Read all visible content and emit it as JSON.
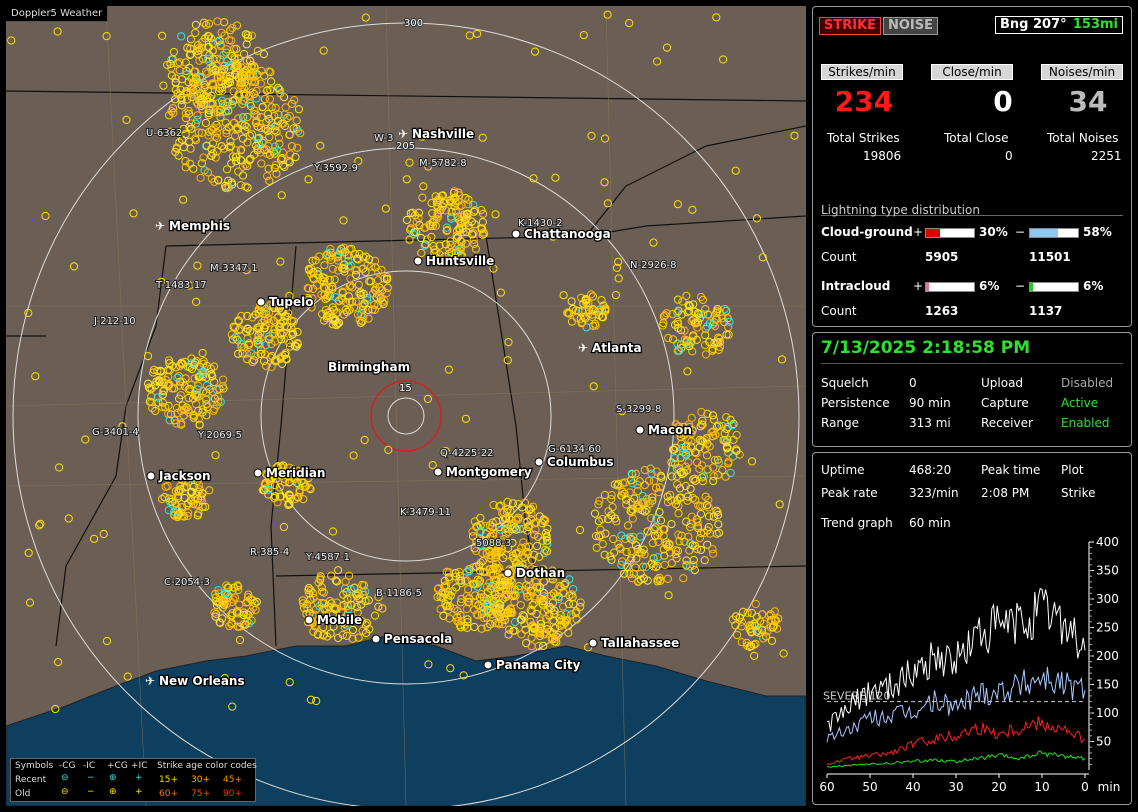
{
  "map": {
    "title": "Doppler5 Weather",
    "rings": [
      "300",
      "205",
      "15"
    ],
    "cities": [
      {
        "name": "Nashville"
      },
      {
        "name": "Memphis"
      },
      {
        "name": "Chattanooga"
      },
      {
        "name": "Huntsville"
      },
      {
        "name": "Tupelo"
      },
      {
        "name": "Atlanta"
      },
      {
        "name": "Birmingham"
      },
      {
        "name": "Macon"
      },
      {
        "name": "Jackson"
      },
      {
        "name": "Meridian"
      },
      {
        "name": "Montgomery"
      },
      {
        "name": "Columbus"
      },
      {
        "name": "Dothan"
      },
      {
        "name": "Mobile"
      },
      {
        "name": "Pensacola"
      },
      {
        "name": "Tallahassee"
      },
      {
        "name": "Panama City"
      },
      {
        "name": "New Orleans"
      }
    ],
    "storms": [
      "U-6362",
      "W-3",
      "Y-3592-9",
      "M-5782-8",
      "K-1430-2",
      "M-3347-1",
      "T-1483-17",
      "N-2926-8",
      "J-212-10",
      "S-3299-8",
      "G-3401-4",
      "Y-2069-5",
      "Q-4225-22",
      "G-6134-60",
      "K-3479-11",
      "5088-3",
      "R-385-4",
      "Y-4587-1",
      "C-2054-3",
      "B-1186-5"
    ],
    "legend": {
      "symbols": "Symbols",
      "recent": "Recent",
      "old": "Old",
      "cg_neg": "-CG",
      "ic_neg": "-IC",
      "cg_pos": "+CG",
      "ic_pos": "+IC",
      "age_title": "Strike age color codes",
      "recent_ages": [
        "15+",
        "30+",
        "45+"
      ],
      "old_ages": [
        "60+",
        "75+",
        "90+"
      ]
    }
  },
  "header": {
    "strike": "STRIKE",
    "noise": "NOISE",
    "bearing": "Bng 207°",
    "range": "153mi"
  },
  "rates": {
    "strikes_label": "Strikes/min",
    "close_label": "Close/min",
    "noises_label": "Noises/min",
    "strikes": "234",
    "close": "0",
    "noises": "34",
    "total_strikes_label": "Total Strikes",
    "total_close_label": "Total Close",
    "total_noises_label": "Total Noises",
    "total_strikes": "19806",
    "total_close": "0",
    "total_noises": "2251"
  },
  "distribution": {
    "title": "Lightning type distribution",
    "cg_label": "Cloud-ground",
    "ic_label": "Intracloud",
    "count_label": "Count",
    "plus": "+",
    "minus": "−",
    "cg_pos_pct": "30%",
    "cg_neg_pct": "58%",
    "ic_pos_pct": "6%",
    "ic_neg_pct": "6%",
    "cg_pos_frac": 0.3,
    "cg_neg_frac": 0.58,
    "ic_pos_frac": 0.06,
    "ic_neg_frac": 0.06,
    "cg_pos_count": "5905",
    "cg_neg_count": "11501",
    "ic_pos_count": "1263",
    "ic_neg_count": "1137",
    "colors": {
      "cg_pos": "#e00000",
      "cg_neg": "#8ec8f2",
      "ic_pos": "#e070a0",
      "ic_neg": "#20d020"
    }
  },
  "status": {
    "datetime": "7/13/2025 2:18:58 PM",
    "squelch_label": "Squelch",
    "squelch": "0",
    "persistence_label": "Persistence",
    "persistence": "90 min",
    "range_label": "Range",
    "range": "313 mi",
    "upload_label": "Upload",
    "upload": "Disabled",
    "capture_label": "Capture",
    "capture": "Active",
    "receiver_label": "Receiver",
    "receiver": "Enabled"
  },
  "stats": {
    "uptime_label": "Uptime",
    "uptime": "468:20",
    "peak_time_label": "Peak time",
    "peak_time": "2:08 PM",
    "plot_label": "Plot",
    "plot": "Strike",
    "peak_rate_label": "Peak rate",
    "peak_rate": "323/min",
    "trend_label": "Trend graph",
    "trend": "60 min"
  },
  "chart_data": {
    "type": "line",
    "severe_label": "SEVERE 120",
    "severe_value": 120,
    "ylim": [
      0,
      400
    ],
    "y_ticks": [
      "400",
      "350",
      "300",
      "250",
      "200",
      "150",
      "100",
      "50"
    ],
    "x_ticks": [
      "60",
      "50",
      "40",
      "30",
      "20",
      "10",
      "0"
    ],
    "x_unit": "min",
    "x": [
      60,
      55,
      50,
      45,
      40,
      35,
      30,
      25,
      20,
      15,
      10,
      5,
      0
    ],
    "series": [
      {
        "color": "#ffffff",
        "values": [
          75,
          110,
          140,
          150,
          170,
          200,
          190,
          235,
          250,
          255,
          280,
          265,
          210
        ]
      },
      {
        "color": "#a8c8ff",
        "values": [
          55,
          70,
          90,
          95,
          100,
          120,
          110,
          135,
          140,
          150,
          165,
          150,
          140
        ]
      },
      {
        "color": "#ff2020",
        "values": [
          10,
          20,
          25,
          30,
          45,
          55,
          60,
          75,
          65,
          75,
          85,
          70,
          55
        ]
      },
      {
        "color": "#20e020",
        "values": [
          5,
          8,
          10,
          12,
          15,
          18,
          15,
          20,
          25,
          20,
          30,
          25,
          20
        ]
      }
    ]
  }
}
